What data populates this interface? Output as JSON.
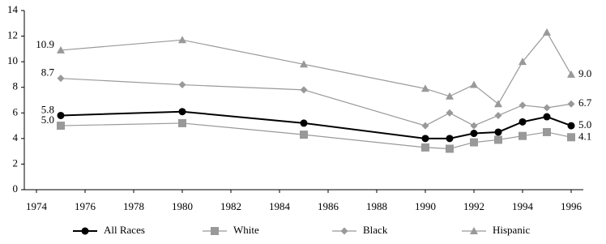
{
  "chart_data": {
    "type": "line",
    "x": [
      1975,
      1980,
      1985,
      1990,
      1991,
      1992,
      1993,
      1994,
      1995,
      1996
    ],
    "series": [
      {
        "name": "All Races",
        "color": "#000000",
        "marker": "circle",
        "values": [
          5.8,
          6.1,
          5.2,
          4.0,
          4.0,
          4.4,
          4.5,
          5.3,
          5.7,
          5.0
        ],
        "value_labels": [
          "5.8",
          null,
          null,
          null,
          null,
          null,
          null,
          null,
          null,
          "5.0"
        ]
      },
      {
        "name": "White",
        "color": "#999999",
        "marker": "square",
        "values": [
          5.0,
          5.2,
          4.3,
          3.3,
          3.2,
          3.7,
          3.9,
          4.2,
          4.5,
          4.1
        ],
        "value_labels": [
          "5.0",
          null,
          null,
          null,
          null,
          null,
          null,
          null,
          null,
          "4.1"
        ]
      },
      {
        "name": "Black",
        "color": "#999999",
        "marker": "diamond",
        "values": [
          8.7,
          8.2,
          7.8,
          5.0,
          6.0,
          5.0,
          5.8,
          6.6,
          6.4,
          6.7
        ],
        "value_labels": [
          "8.7",
          null,
          null,
          null,
          null,
          null,
          null,
          null,
          null,
          "6.7"
        ]
      },
      {
        "name": "Hispanic",
        "color": "#999999",
        "marker": "triangle",
        "values": [
          10.9,
          11.7,
          9.8,
          7.9,
          7.3,
          8.2,
          6.7,
          10.0,
          12.3,
          9.0
        ],
        "value_labels": [
          "10.9",
          null,
          null,
          null,
          null,
          null,
          null,
          null,
          null,
          "9.0"
        ]
      }
    ],
    "xlim": [
      1973.5,
      1996.5
    ],
    "xticks": [
      1974,
      1976,
      1978,
      1980,
      1982,
      1984,
      1986,
      1988,
      1990,
      1992,
      1994,
      1996
    ],
    "ylim": [
      0,
      14
    ],
    "yticks": [
      0,
      2,
      4,
      6,
      8,
      10,
      12,
      14
    ],
    "legend": "bottom"
  }
}
